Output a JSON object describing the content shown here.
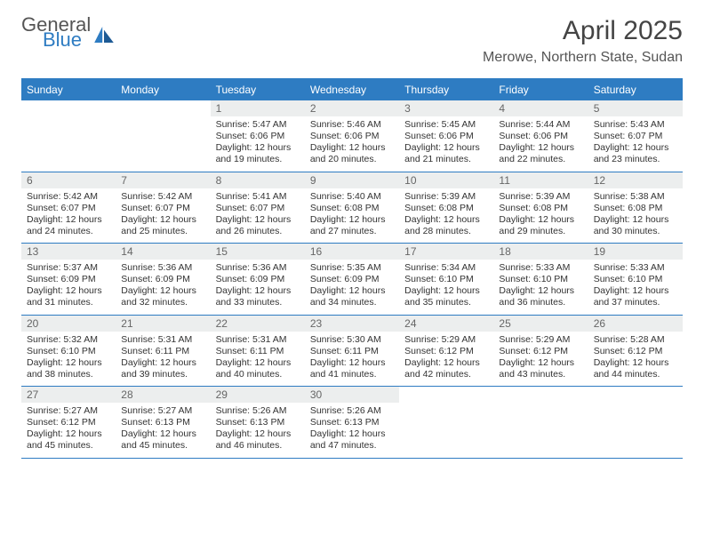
{
  "brand": {
    "general": "General",
    "blue": "Blue"
  },
  "title": "April 2025",
  "location": "Merowe, Northern State, Sudan",
  "colors": {
    "accent": "#2e7cc2",
    "headerText": "#ffffff",
    "dayNumBg": "#eceeee",
    "dayNumText": "#666666",
    "bodyText": "#333333",
    "titleText": "#444444",
    "background": "#ffffff"
  },
  "weekdays": [
    "Sunday",
    "Monday",
    "Tuesday",
    "Wednesday",
    "Thursday",
    "Friday",
    "Saturday"
  ],
  "startWeekday": 2,
  "daysInMonth": 30,
  "days": {
    "1": {
      "sunrise": "5:47 AM",
      "sunset": "6:06 PM",
      "daylight": "12 hours and 19 minutes."
    },
    "2": {
      "sunrise": "5:46 AM",
      "sunset": "6:06 PM",
      "daylight": "12 hours and 20 minutes."
    },
    "3": {
      "sunrise": "5:45 AM",
      "sunset": "6:06 PM",
      "daylight": "12 hours and 21 minutes."
    },
    "4": {
      "sunrise": "5:44 AM",
      "sunset": "6:06 PM",
      "daylight": "12 hours and 22 minutes."
    },
    "5": {
      "sunrise": "5:43 AM",
      "sunset": "6:07 PM",
      "daylight": "12 hours and 23 minutes."
    },
    "6": {
      "sunrise": "5:42 AM",
      "sunset": "6:07 PM",
      "daylight": "12 hours and 24 minutes."
    },
    "7": {
      "sunrise": "5:42 AM",
      "sunset": "6:07 PM",
      "daylight": "12 hours and 25 minutes."
    },
    "8": {
      "sunrise": "5:41 AM",
      "sunset": "6:07 PM",
      "daylight": "12 hours and 26 minutes."
    },
    "9": {
      "sunrise": "5:40 AM",
      "sunset": "6:08 PM",
      "daylight": "12 hours and 27 minutes."
    },
    "10": {
      "sunrise": "5:39 AM",
      "sunset": "6:08 PM",
      "daylight": "12 hours and 28 minutes."
    },
    "11": {
      "sunrise": "5:39 AM",
      "sunset": "6:08 PM",
      "daylight": "12 hours and 29 minutes."
    },
    "12": {
      "sunrise": "5:38 AM",
      "sunset": "6:08 PM",
      "daylight": "12 hours and 30 minutes."
    },
    "13": {
      "sunrise": "5:37 AM",
      "sunset": "6:09 PM",
      "daylight": "12 hours and 31 minutes."
    },
    "14": {
      "sunrise": "5:36 AM",
      "sunset": "6:09 PM",
      "daylight": "12 hours and 32 minutes."
    },
    "15": {
      "sunrise": "5:36 AM",
      "sunset": "6:09 PM",
      "daylight": "12 hours and 33 minutes."
    },
    "16": {
      "sunrise": "5:35 AM",
      "sunset": "6:09 PM",
      "daylight": "12 hours and 34 minutes."
    },
    "17": {
      "sunrise": "5:34 AM",
      "sunset": "6:10 PM",
      "daylight": "12 hours and 35 minutes."
    },
    "18": {
      "sunrise": "5:33 AM",
      "sunset": "6:10 PM",
      "daylight": "12 hours and 36 minutes."
    },
    "19": {
      "sunrise": "5:33 AM",
      "sunset": "6:10 PM",
      "daylight": "12 hours and 37 minutes."
    },
    "20": {
      "sunrise": "5:32 AM",
      "sunset": "6:10 PM",
      "daylight": "12 hours and 38 minutes."
    },
    "21": {
      "sunrise": "5:31 AM",
      "sunset": "6:11 PM",
      "daylight": "12 hours and 39 minutes."
    },
    "22": {
      "sunrise": "5:31 AM",
      "sunset": "6:11 PM",
      "daylight": "12 hours and 40 minutes."
    },
    "23": {
      "sunrise": "5:30 AM",
      "sunset": "6:11 PM",
      "daylight": "12 hours and 41 minutes."
    },
    "24": {
      "sunrise": "5:29 AM",
      "sunset": "6:12 PM",
      "daylight": "12 hours and 42 minutes."
    },
    "25": {
      "sunrise": "5:29 AM",
      "sunset": "6:12 PM",
      "daylight": "12 hours and 43 minutes."
    },
    "26": {
      "sunrise": "5:28 AM",
      "sunset": "6:12 PM",
      "daylight": "12 hours and 44 minutes."
    },
    "27": {
      "sunrise": "5:27 AM",
      "sunset": "6:12 PM",
      "daylight": "12 hours and 45 minutes."
    },
    "28": {
      "sunrise": "5:27 AM",
      "sunset": "6:13 PM",
      "daylight": "12 hours and 45 minutes."
    },
    "29": {
      "sunrise": "5:26 AM",
      "sunset": "6:13 PM",
      "daylight": "12 hours and 46 minutes."
    },
    "30": {
      "sunrise": "5:26 AM",
      "sunset": "6:13 PM",
      "daylight": "12 hours and 47 minutes."
    }
  },
  "labels": {
    "sunrise": "Sunrise: ",
    "sunset": "Sunset: ",
    "daylight": "Daylight: "
  }
}
